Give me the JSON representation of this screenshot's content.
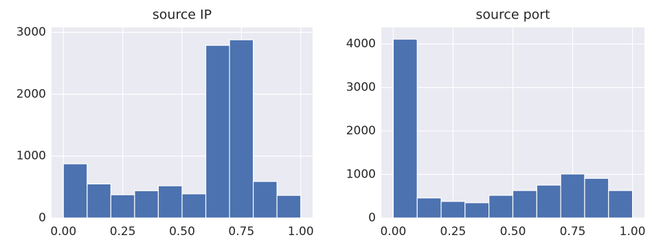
{
  "chart_data": [
    {
      "type": "histogram",
      "title": "source IP",
      "bins": [
        0,
        0.1,
        0.2,
        0.3,
        0.4,
        0.5,
        0.6,
        0.7,
        0.8,
        0.9,
        1.0
      ],
      "values": [
        875,
        550,
        375,
        440,
        520,
        390,
        2790,
        2880,
        590,
        365
      ],
      "color": "#4c72b0",
      "xlim": [
        -0.05,
        1.05
      ],
      "ylim": [
        0,
        3080
      ],
      "xticks": [
        {
          "value": 0,
          "label": "0.00"
        },
        {
          "value": 0.25,
          "label": "0.25"
        },
        {
          "value": 0.5,
          "label": "0.50"
        },
        {
          "value": 0.75,
          "label": "0.75"
        },
        {
          "value": 1,
          "label": "1.00"
        }
      ],
      "yticks": [
        0,
        1000,
        2000,
        3000
      ],
      "grid": true
    },
    {
      "type": "histogram",
      "title": "source port",
      "bins": [
        0,
        0.1,
        0.2,
        0.3,
        0.4,
        0.5,
        0.6,
        0.7,
        0.8,
        0.9,
        1.0
      ],
      "values": [
        4110,
        460,
        380,
        350,
        520,
        630,
        755,
        1010,
        910,
        630
      ],
      "color": "#4c72b0",
      "xlim": [
        -0.05,
        1.05
      ],
      "ylim": [
        0,
        4380
      ],
      "xticks": [
        {
          "value": 0,
          "label": "0.00"
        },
        {
          "value": 0.25,
          "label": "0.25"
        },
        {
          "value": 0.5,
          "label": "0.50"
        },
        {
          "value": 0.75,
          "label": "0.75"
        },
        {
          "value": 1,
          "label": "1.00"
        }
      ],
      "yticks": [
        0,
        1000,
        2000,
        3000,
        4000
      ],
      "grid": true
    }
  ]
}
